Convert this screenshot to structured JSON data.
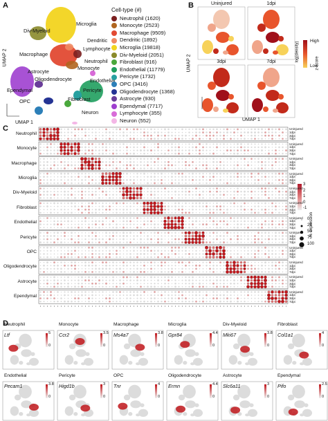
{
  "panels": {
    "a": "A",
    "b": "B",
    "c": "C",
    "d": "D"
  },
  "panel_a": {
    "xlabel": "UMAP 1",
    "ylabel": "UMAP 2",
    "legend_title": "Cell-type (#)",
    "legend": [
      {
        "name": "Neutrophil (1620)",
        "color": "#7b1f1f"
      },
      {
        "name": "Monocyte (2523)",
        "color": "#b0651f"
      },
      {
        "name": "Macrophage (9509)",
        "color": "#e24a33"
      },
      {
        "name": "Dendritic (1892)",
        "color": "#ef8a62"
      },
      {
        "name": "Microglia (19818)",
        "color": "#f2d41f"
      },
      {
        "name": "Div-Myeloid (2051)",
        "color": "#8a8a2a"
      },
      {
        "name": "Fibroblast (916)",
        "color": "#4aa83c"
      },
      {
        "name": "Endothelial (11779)",
        "color": "#1f9e5e"
      },
      {
        "name": "Pericyte (1732)",
        "color": "#27a0a0"
      },
      {
        "name": "OPC (3416)",
        "color": "#2c7fb8"
      },
      {
        "name": "Oligodendrocyte (1368)",
        "color": "#253494"
      },
      {
        "name": "Astrocyte (930)",
        "color": "#6a3d9a"
      },
      {
        "name": "Ependymal (7717)",
        "color": "#9e3fcf"
      },
      {
        "name": "Lymphocyte (355)",
        "color": "#d86bd8"
      },
      {
        "name": "Neuron (552)",
        "color": "#f4b6e6"
      }
    ],
    "cluster_labels": {
      "microglia": "Microglia",
      "divmyeloid": "Div-Myeloid",
      "dendritic": "Dendritic",
      "lymphocyte": "Lymphocyte",
      "macrophage": "Macrophage",
      "neutrophil": "Neutrophil",
      "monocyte": "Monocyte",
      "astrocyte": "Astrocyte",
      "endothelial": "Endothelial",
      "oligodendrocyte": "Oligodendrocyte",
      "ependymal": "Ependymal",
      "pericyte": "Pericyte",
      "fibroblast": "Fibroblast",
      "opc": "OPC",
      "neuron": "Neuron"
    }
  },
  "panel_b": {
    "titles": [
      "Uninjured",
      "1dpi",
      "3dpi",
      "7dpi"
    ],
    "xlabel": "UMAP 1",
    "ylabel": "UMAP 2",
    "scale_title": "log(density)",
    "scale_high": "High",
    "scale_low": "Low"
  },
  "panel_c": {
    "cell_types": [
      "Neutrophil",
      "Monocyte",
      "Macrophage",
      "Microglia",
      "Div-Myeloid",
      "Fibroblast",
      "Endothelial",
      "Pericyte",
      "OPC",
      "Oligodendrocyte",
      "Astrocyte",
      "Ependymal"
    ],
    "conditions": [
      "Uninjured",
      "1dpi",
      "3dpi",
      "7dpi"
    ],
    "zscore_title": "z-score",
    "zscore_ticks": [
      "3",
      "2",
      "1",
      "0",
      "-1"
    ],
    "pct_title": "% expression",
    "pct_ticks": [
      "0",
      "25",
      "50",
      "75",
      "100"
    ]
  },
  "panel_d": {
    "plots": [
      {
        "celltype": "Neutrophil",
        "gene": "Ltf",
        "max": "5",
        "min": "0"
      },
      {
        "celltype": "Monocyte",
        "gene": "Ccr2",
        "max": "3.5",
        "min": "0"
      },
      {
        "celltype": "Macrophage",
        "gene": "Ms4a7",
        "max": "3.8",
        "min": "0"
      },
      {
        "celltype": "Microglia",
        "gene": "Gpr84",
        "max": "4.4",
        "min": "0"
      },
      {
        "celltype": "Div-Myeloid",
        "gene": "Mki67",
        "max": "3.8",
        "min": "0"
      },
      {
        "celltype": "Fibroblast",
        "gene": "Col1a1",
        "max": "4",
        "min": "0"
      },
      {
        "celltype": "Endothelial",
        "gene": "Pecam1",
        "max": "3.8",
        "min": "0"
      },
      {
        "celltype": "Pericyte",
        "gene": "Higd1b",
        "max": "3",
        "min": "0"
      },
      {
        "celltype": "OPC",
        "gene": "Tnr",
        "max": "4",
        "min": "0"
      },
      {
        "celltype": "Oligodendrocyte",
        "gene": "Ermn",
        "max": "4.4",
        "min": "0"
      },
      {
        "celltype": "Astrocyte",
        "gene": "Slc6a11",
        "max": "3",
        "min": "0"
      },
      {
        "celltype": "Ependymal",
        "gene": "Pifo",
        "max": "2.5",
        "min": "0"
      }
    ]
  }
}
